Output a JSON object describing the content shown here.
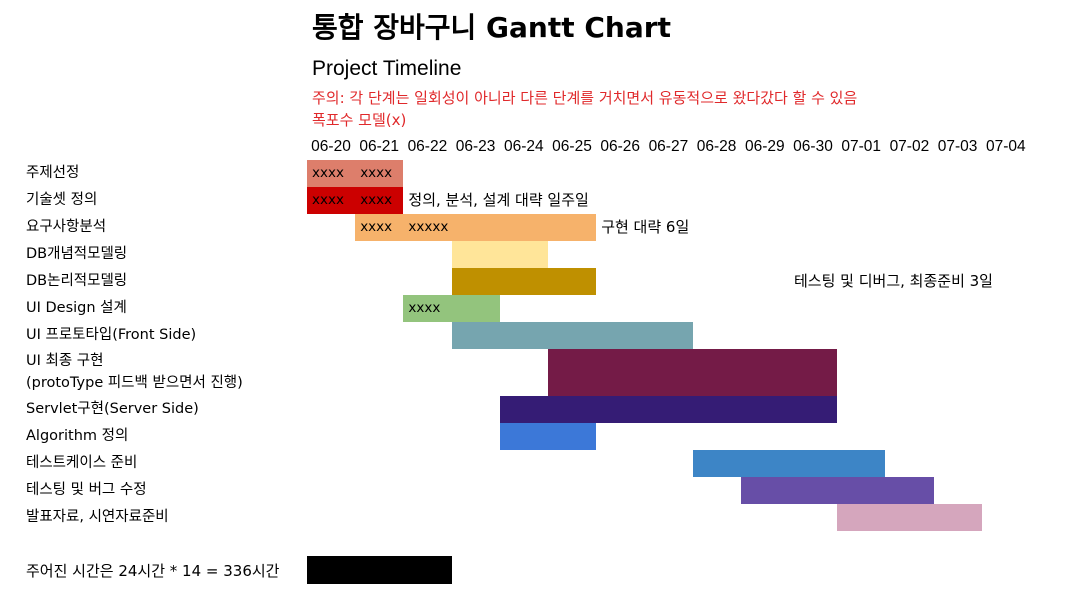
{
  "chart_data": {
    "type": "gantt",
    "title": "통합 장바구니 Gantt Chart",
    "subtitle": "Project Timeline",
    "notes": [
      "주의: 각 단계는 일회성이 아니라 다른 단계를 거치면서 유동적으로 왔다갔다 할 수 있음",
      "폭포수 모델(x)"
    ],
    "dates": [
      "06-20",
      "06-21",
      "06-22",
      "06-23",
      "06-24",
      "06-25",
      "06-26",
      "06-27",
      "06-28",
      "06-29",
      "06-30",
      "07-01",
      "07-02",
      "07-03",
      "07-04"
    ],
    "tasks": [
      {
        "name": "주제선정",
        "start": "06-20",
        "end": "06-21",
        "color": "#dd7e6b",
        "marks": [
          {
            "text": "xxxx",
            "date": "06-20"
          },
          {
            "text": "xxxx",
            "date": "06-21"
          }
        ]
      },
      {
        "name": "기술셋 정의",
        "start": "06-20",
        "end": "06-21",
        "color": "#cc0000",
        "marks": [
          {
            "text": "xxxx",
            "date": "06-20"
          },
          {
            "text": "xxxx",
            "date": "06-21"
          }
        ]
      },
      {
        "name": "요구사항분석",
        "start": "06-21",
        "end": "06-25",
        "color": "#f6b26b",
        "marks": [
          {
            "text": "xxxx",
            "date": "06-21"
          },
          {
            "text": "xxxxx",
            "date": "06-22"
          }
        ]
      },
      {
        "name": "DB개념적모델링",
        "start": "06-23",
        "end": "06-24",
        "color": "#ffe599",
        "marks": []
      },
      {
        "name": "DB논리적모델링",
        "start": "06-23",
        "end": "06-25",
        "color": "#bf9000",
        "marks": []
      },
      {
        "name": "UI Design 설계",
        "start": "06-22",
        "end": "06-23",
        "color": "#93c47d",
        "marks": [
          {
            "text": "xxxx",
            "date": "06-22"
          }
        ]
      },
      {
        "name": "UI 프로토타입(Front Side)",
        "start": "06-23",
        "end": "06-27",
        "color": "#76a5af",
        "marks": []
      },
      {
        "name": "UI 최종 구현",
        "name2": "(protoType 피드백 받으면서 진행)",
        "start": "06-25",
        "end": "06-30",
        "color": "#741b47",
        "marks": []
      },
      {
        "name": "Servlet구현(Server Side)",
        "start": "06-24",
        "end": "06-30",
        "color": "#351c75",
        "marks": []
      },
      {
        "name": "Algorithm 정의",
        "start": "06-24",
        "end": "06-25",
        "color": "#3c78d8",
        "marks": []
      },
      {
        "name": "테스트케이스 준비",
        "start": "06-28",
        "end": "07-01",
        "color": "#3d85c6",
        "marks": []
      },
      {
        "name": "테스팅 및 버그 수정",
        "start": "06-29",
        "end": "07-02",
        "color": "#674ea7",
        "marks": []
      },
      {
        "name": "발표자료, 시연자료준비",
        "start": "07-01",
        "end": "07-03",
        "color": "#d5a6bd",
        "marks": []
      }
    ],
    "annotations": [
      {
        "text": "정의, 분석, 설계 대략 일주일",
        "row": 1,
        "after": "06-21"
      },
      {
        "text": "구현 대략 6일",
        "row": 2,
        "after": "06-25"
      },
      {
        "text": "테스팅 및 디버그, 최종준비 3일",
        "row": 4,
        "after": "06-29"
      }
    ],
    "footer": {
      "label": "주어진 시간은 24시간 * 14 = 336시간",
      "box_color": "#000000"
    },
    "grid": false
  }
}
